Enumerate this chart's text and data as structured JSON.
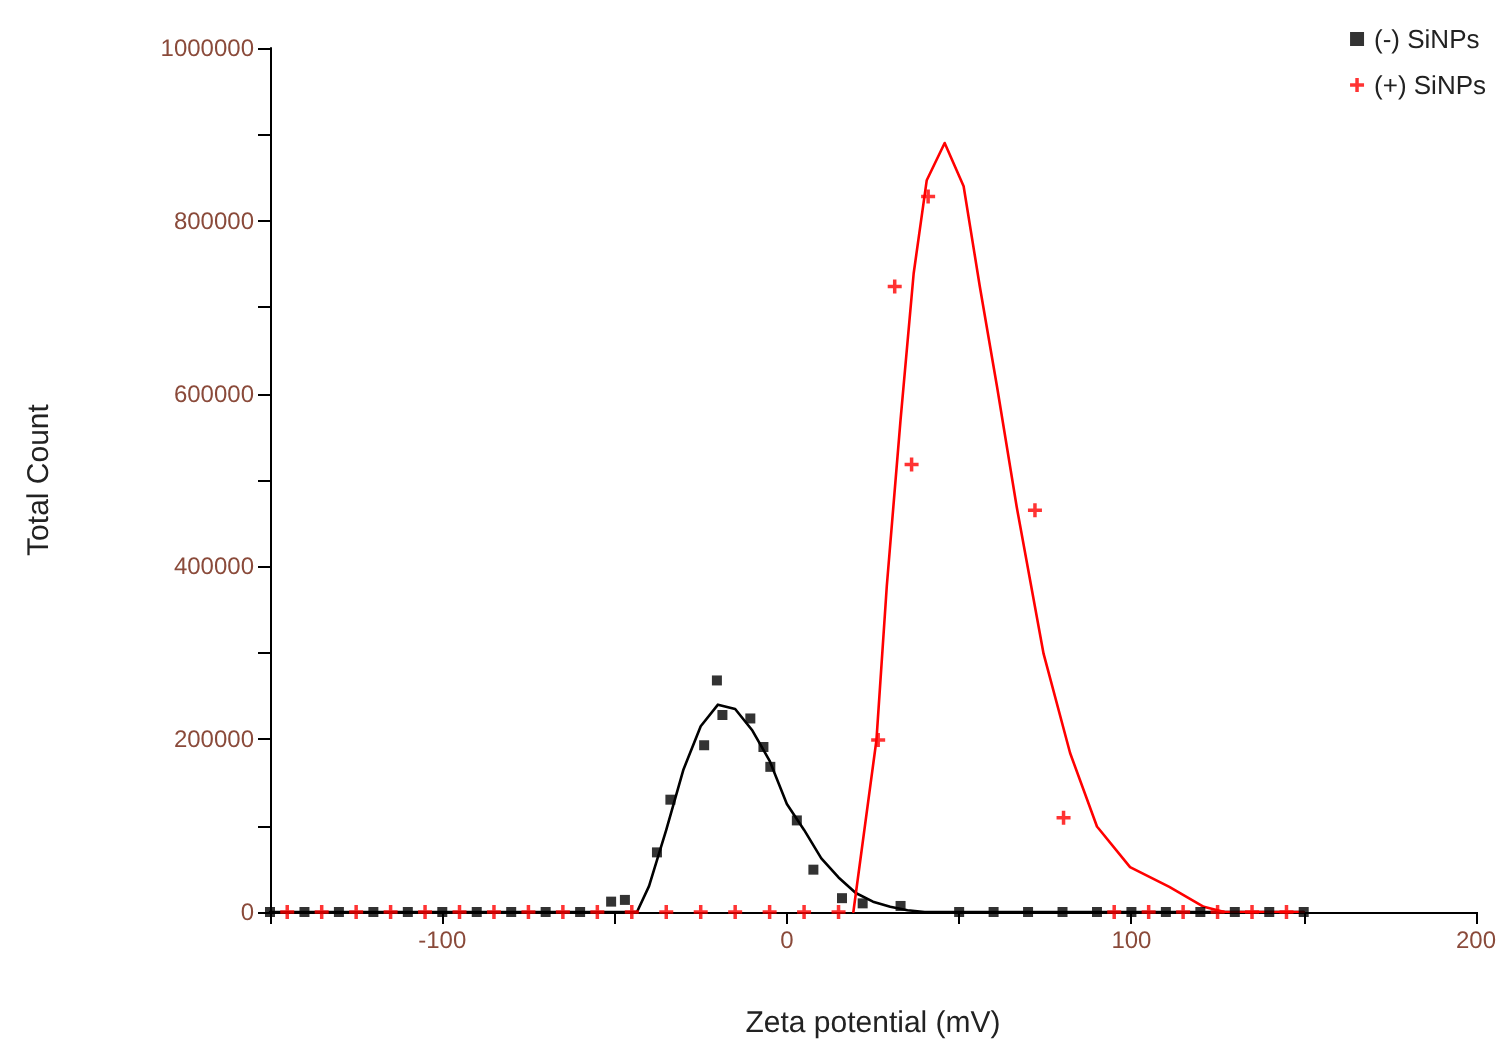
{
  "chart_data": {
    "type": "scatter",
    "xlabel": "Zeta potential (mV)",
    "ylabel": "Total Count",
    "xlim": [
      -150,
      200
    ],
    "xticks": [
      {
        "value": -150,
        "label": null
      },
      -100,
      {
        "value": -50,
        "label": null
      },
      0,
      {
        "value": 50,
        "label": null
      },
      100,
      {
        "value": 150,
        "label": null
      },
      200
    ],
    "ylim": [
      0,
      1000000
    ],
    "yticks": [
      0,
      {
        "value": 100000,
        "label": null
      },
      200000,
      {
        "value": 300000,
        "label": null
      },
      400000,
      {
        "value": 500000,
        "label": null
      },
      600000,
      {
        "value": 700000,
        "label": null
      },
      800000,
      {
        "value": 900000,
        "label": null
      },
      1000000
    ],
    "grid": false,
    "legend": "top right",
    "series": [
      {
        "name": "(-) SiNPs",
        "marker": "square",
        "color": "#000000",
        "x": [
          -150,
          -140,
          -130,
          -120,
          -110,
          -100,
          -90,
          -80,
          -70,
          -60,
          -51,
          -47,
          -37.7,
          -33.8,
          -24,
          -20.3,
          -18.7,
          -10.6,
          -6.8,
          -4.8,
          2.9,
          7.7,
          16,
          22,
          33,
          50,
          60,
          70,
          80,
          90,
          100,
          110,
          120,
          130,
          140,
          150
        ],
        "values": [
          0,
          0,
          0,
          0,
          0,
          0,
          0,
          0,
          0,
          0,
          12000,
          14000,
          69000,
          130000,
          193000,
          268000,
          228000,
          224000,
          191000,
          168000,
          106000,
          49000,
          16000,
          10000,
          7000,
          0,
          0,
          0,
          0,
          0,
          0,
          0,
          0,
          0,
          0,
          0
        ]
      },
      {
        "name": "(+) SiNPs",
        "marker": "cross",
        "color": "#ff0000",
        "x": [
          -145,
          -135,
          -125,
          -115,
          -105,
          -95,
          -85,
          -75,
          -65,
          -55,
          -45,
          -35,
          -25,
          -15,
          -5,
          5,
          15,
          26.5,
          31.3,
          36.2,
          41,
          72,
          80.3,
          95,
          105,
          115,
          125,
          135,
          145
        ],
        "values": [
          0,
          0,
          0,
          0,
          0,
          0,
          0,
          0,
          0,
          0,
          0,
          0,
          0,
          0,
          0,
          0,
          0,
          199000,
          724000,
          518000,
          828000,
          465000,
          109000,
          0,
          0,
          0,
          0,
          0,
          0
        ]
      },
      {
        "type": "line",
        "marker": "none",
        "color": "#000000",
        "x": [
          -150,
          -43.5,
          -40,
          -35,
          -30,
          -25,
          -20,
          -15,
          -10,
          -5,
          0,
          5,
          10,
          15,
          20,
          25,
          30,
          35,
          40,
          50,
          150
        ],
        "values": [
          0,
          0,
          30000,
          95000,
          165000,
          215000,
          240000,
          235000,
          210000,
          175000,
          125000,
          95000,
          62000,
          40000,
          22000,
          12000,
          6000,
          2000,
          0,
          0,
          0
        ]
      },
      {
        "type": "line",
        "marker": "none",
        "color": "#ff0000",
        "x": [
          19.3,
          26,
          29,
          33,
          36.8,
          40.6,
          45.8,
          51.3,
          56,
          61,
          66.7,
          74.5,
          82.2,
          90,
          99.6,
          111,
          121,
          127,
          150
        ],
        "values": [
          0,
          199000,
          377000,
          570000,
          739000,
          847000,
          890000,
          840000,
          724000,
          608000,
          469000,
          299000,
          184000,
          99000,
          52000,
          29000,
          6000,
          0,
          0
        ]
      }
    ]
  }
}
